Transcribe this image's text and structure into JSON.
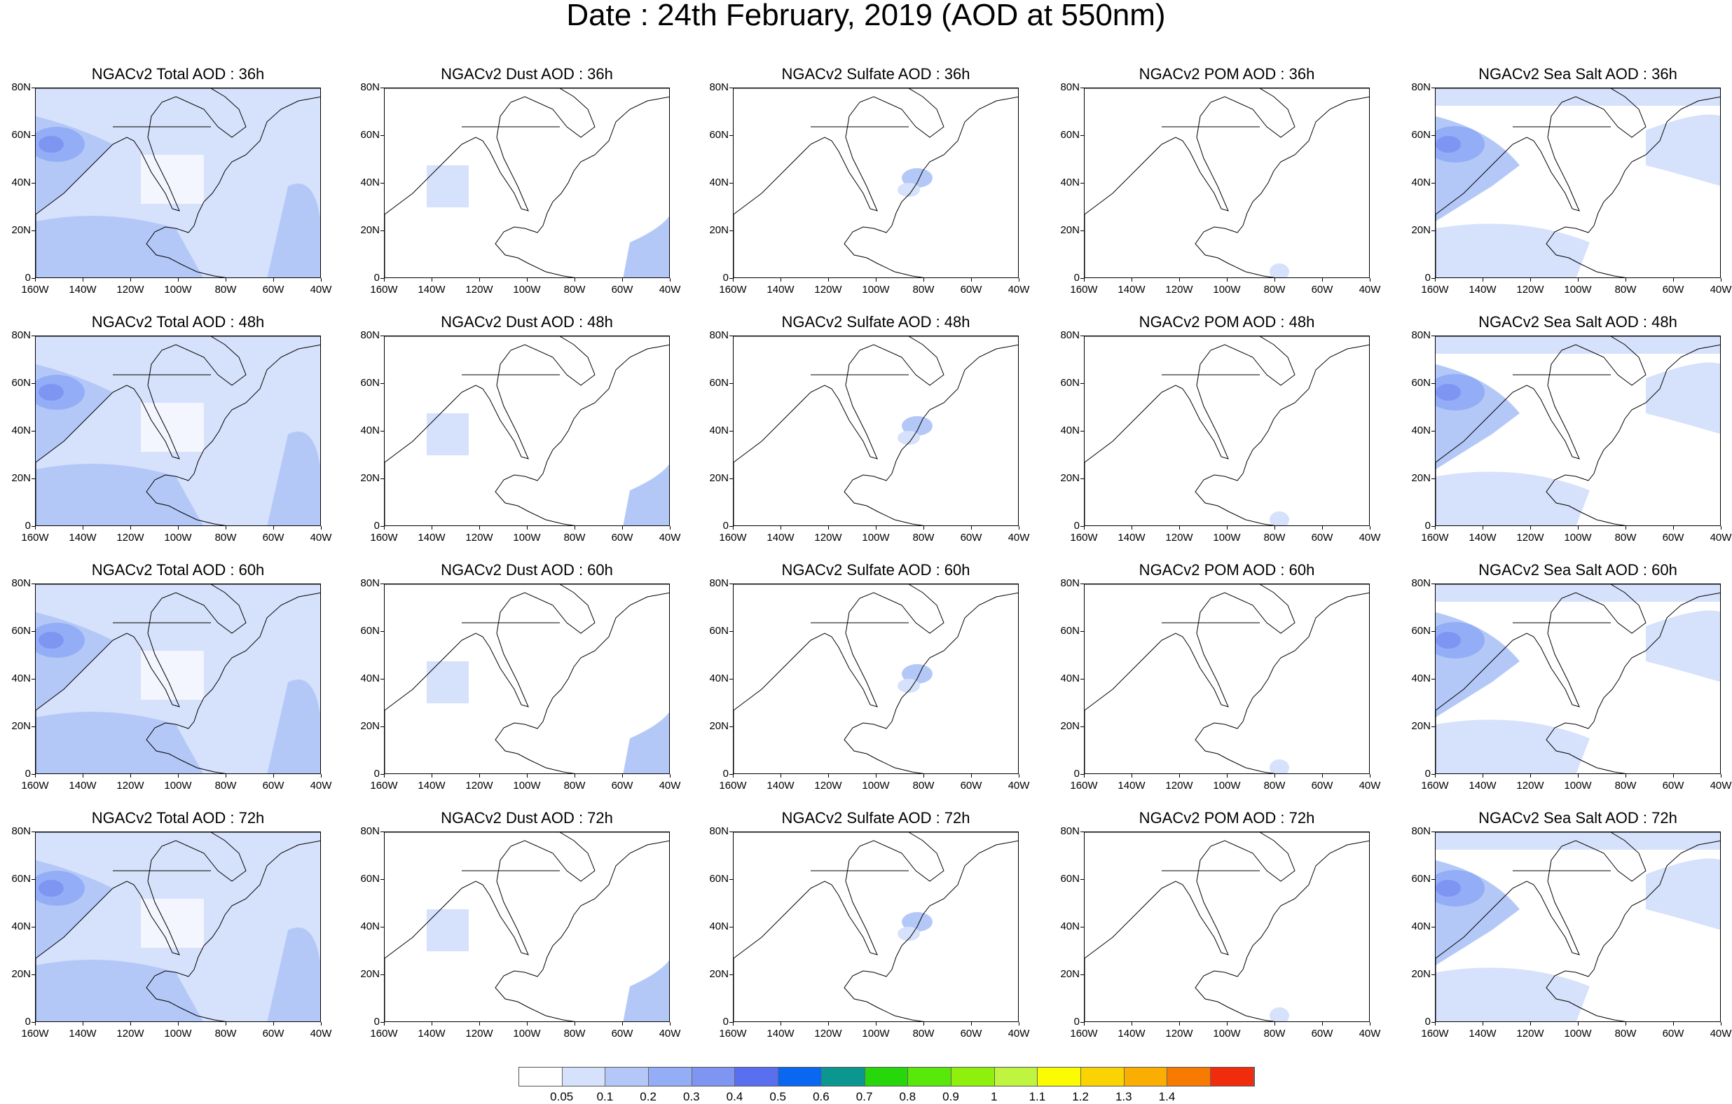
{
  "title": "Date : 24th February, 2019 (AOD at 550nm)",
  "lat_ticks": [
    "80N",
    "60N",
    "40N",
    "20N",
    "0"
  ],
  "lon_ticks": [
    "160W",
    "140W",
    "120W",
    "100W",
    "80W",
    "60W",
    "40W"
  ],
  "panels": [
    {
      "title": "NGACv2 Total AOD : 36h",
      "type": "total"
    },
    {
      "title": "NGACv2 Dust AOD : 36h",
      "type": "dust"
    },
    {
      "title": "NGACv2 Sulfate AOD : 36h",
      "type": "sulfate"
    },
    {
      "title": "NGACv2 POM AOD : 36h",
      "type": "pom"
    },
    {
      "title": "NGACv2 Sea Salt AOD : 36h",
      "type": "seasalt"
    },
    {
      "title": "NGACv2 Total AOD : 48h",
      "type": "total"
    },
    {
      "title": "NGACv2 Dust AOD : 48h",
      "type": "dust"
    },
    {
      "title": "NGACv2 Sulfate AOD : 48h",
      "type": "sulfate"
    },
    {
      "title": "NGACv2 POM AOD : 48h",
      "type": "pom"
    },
    {
      "title": "NGACv2 Sea Salt AOD : 48h",
      "type": "seasalt"
    },
    {
      "title": "NGACv2 Total AOD : 60h",
      "type": "total"
    },
    {
      "title": "NGACv2 Dust AOD : 60h",
      "type": "dust"
    },
    {
      "title": "NGACv2 Sulfate AOD : 60h",
      "type": "sulfate"
    },
    {
      "title": "NGACv2 POM AOD : 60h",
      "type": "pom"
    },
    {
      "title": "NGACv2 Sea Salt AOD : 60h",
      "type": "seasalt"
    },
    {
      "title": "NGACv2 Total AOD : 72h",
      "type": "total"
    },
    {
      "title": "NGACv2 Dust AOD : 72h",
      "type": "dust"
    },
    {
      "title": "NGACv2 Sulfate AOD : 72h",
      "type": "sulfate"
    },
    {
      "title": "NGACv2 POM AOD : 72h",
      "type": "pom"
    },
    {
      "title": "NGACv2 Sea Salt  AOD : 72h",
      "type": "seasalt"
    }
  ],
  "colorbar": {
    "labels": [
      "0.05",
      "0.1",
      "0.2",
      "0.3",
      "0.4",
      "0.5",
      "0.6",
      "0.7",
      "0.8",
      "0.9",
      "1",
      "1.1",
      "1.2",
      "1.3",
      "1.4"
    ],
    "colors": [
      "#ffffff",
      "#d6e1fb",
      "#b4c8f8",
      "#93aef6",
      "#7f95f2",
      "#5a6ff0",
      "#0a68f0",
      "#0b9690",
      "#27d70c",
      "#58e80b",
      "#8ef00b",
      "#bff441",
      "#fbfb02",
      "#fbd302",
      "#fbae02",
      "#f77a02",
      "#f02c0c"
    ]
  }
}
